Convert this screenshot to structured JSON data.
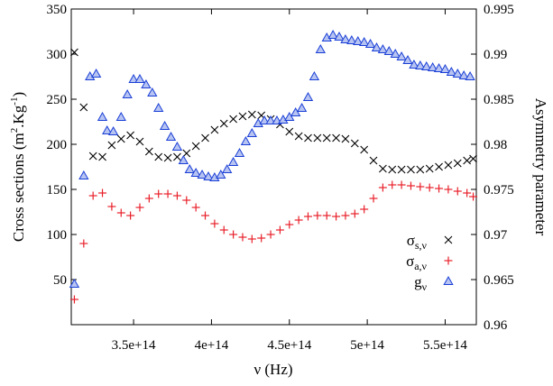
{
  "chart_data": {
    "type": "scatter",
    "xlabel": {
      "main": "ν (Hz)"
    },
    "ylabel_left": {
      "pre": "Cross sections (m",
      "sup1": "2",
      "mid": ".Kg",
      "sup2": "-1",
      "post": ")"
    },
    "ylabel_right": "Asymmetry parameter",
    "xlim": [
      310000000000000.0,
      570000000000000.0
    ],
    "ylim_left": [
      0,
      350
    ],
    "ylim_right": [
      0.96,
      0.995
    ],
    "x_ticks": [
      {
        "value": 350000000000000.0,
        "label": "3.5e+14"
      },
      {
        "value": 400000000000000.0,
        "label": "4e+14"
      },
      {
        "value": 450000000000000.0,
        "label": "4.5e+14"
      },
      {
        "value": 500000000000000.0,
        "label": "5e+14"
      },
      {
        "value": 550000000000000.0,
        "label": "5.5e+14"
      }
    ],
    "y_ticks_left": [
      {
        "value": 0,
        "label": ""
      },
      {
        "value": 50,
        "label": "50"
      },
      {
        "value": 100,
        "label": "100"
      },
      {
        "value": 150,
        "label": "150"
      },
      {
        "value": 200,
        "label": "200"
      },
      {
        "value": 250,
        "label": "250"
      },
      {
        "value": 300,
        "label": "300"
      },
      {
        "value": 350,
        "label": "350"
      }
    ],
    "y_ticks_right": [
      {
        "value": 0.96,
        "label": "0.96"
      },
      {
        "value": 0.965,
        "label": "0.965"
      },
      {
        "value": 0.97,
        "label": "0.97"
      },
      {
        "value": 0.975,
        "label": "0.975"
      },
      {
        "value": 0.98,
        "label": "0.98"
      },
      {
        "value": 0.985,
        "label": "0.985"
      },
      {
        "value": 0.99,
        "label": "0.99"
      },
      {
        "value": 0.995,
        "label": "0.995"
      }
    ],
    "grid": false,
    "legend_position": "bottom-right",
    "series": [
      {
        "key": "sigma_s",
        "legend": {
          "base": "σ",
          "sub": "s,ν"
        },
        "marker": "x",
        "color": "#000000",
        "axis": "left",
        "x": [
          312000000000000.0,
          318000000000000.0,
          324000000000000.0,
          330000000000000.0,
          336000000000000.0,
          342000000000000.0,
          348000000000000.0,
          354000000000000.0,
          360000000000000.0,
          366000000000000.0,
          372000000000000.0,
          378000000000000.0,
          384000000000000.0,
          390000000000000.0,
          396000000000000.0,
          402000000000000.0,
          408000000000000.0,
          414000000000000.0,
          420000000000000.0,
          426000000000000.0,
          432000000000000.0,
          438000000000000.0,
          444000000000000.0,
          450000000000000.0,
          456000000000000.0,
          462000000000000.0,
          468000000000000.0,
          474000000000000.0,
          480000000000000.0,
          486000000000000.0,
          492000000000000.0,
          498000000000000.0,
          504000000000000.0,
          510000000000000.0,
          516000000000000.0,
          522000000000000.0,
          528000000000000.0,
          534000000000000.0,
          540000000000000.0,
          546000000000000.0,
          552000000000000.0,
          558000000000000.0,
          564000000000000.0,
          568000000000000.0
        ],
        "y": [
          302,
          241,
          187,
          186,
          199,
          206,
          210,
          203,
          192,
          186,
          185,
          186,
          190,
          198,
          207,
          216,
          223,
          228,
          231,
          233,
          232,
          228,
          222,
          214,
          209,
          207,
          207,
          207,
          207,
          206,
          201,
          194,
          182,
          173,
          172,
          172,
          172,
          172,
          173,
          175,
          177,
          179,
          182,
          184
        ]
      },
      {
        "key": "sigma_a",
        "legend": {
          "base": "σ",
          "sub": "a,ν"
        },
        "marker": "plus",
        "color": "#e8202a",
        "axis": "left",
        "x": [
          312000000000000.0,
          318000000000000.0,
          324000000000000.0,
          330000000000000.0,
          336000000000000.0,
          342000000000000.0,
          348000000000000.0,
          354000000000000.0,
          360000000000000.0,
          366000000000000.0,
          372000000000000.0,
          378000000000000.0,
          384000000000000.0,
          390000000000000.0,
          396000000000000.0,
          402000000000000.0,
          408000000000000.0,
          414000000000000.0,
          420000000000000.0,
          426000000000000.0,
          432000000000000.0,
          438000000000000.0,
          444000000000000.0,
          450000000000000.0,
          456000000000000.0,
          462000000000000.0,
          468000000000000.0,
          474000000000000.0,
          480000000000000.0,
          486000000000000.0,
          492000000000000.0,
          498000000000000.0,
          504000000000000.0,
          510000000000000.0,
          516000000000000.0,
          522000000000000.0,
          528000000000000.0,
          534000000000000.0,
          540000000000000.0,
          546000000000000.0,
          552000000000000.0,
          558000000000000.0,
          564000000000000.0,
          568000000000000.0
        ],
        "y": [
          28,
          90,
          143,
          146,
          131,
          124,
          121,
          130,
          140,
          145,
          145,
          143,
          138,
          130,
          121,
          112,
          105,
          100,
          97,
          95,
          96,
          100,
          105,
          111,
          116,
          120,
          121,
          121,
          120,
          121,
          123,
          128,
          140,
          152,
          155,
          155,
          154,
          153,
          152,
          151,
          150,
          148,
          146,
          142
        ]
      },
      {
        "key": "g",
        "legend": {
          "base": "g",
          "sub": "ν"
        },
        "marker": "triangle",
        "color": "#1a3fd6",
        "axis": "right",
        "x": [
          312000000000000.0,
          318000000000000.0,
          322000000000000.0,
          326000000000000.0,
          330000000000000.0,
          333000000000000.0,
          337000000000000.0,
          342000000000000.0,
          346000000000000.0,
          350000000000000.0,
          354000000000000.0,
          358000000000000.0,
          362000000000000.0,
          366000000000000.0,
          370000000000000.0,
          374000000000000.0,
          378000000000000.0,
          382000000000000.0,
          386000000000000.0,
          390000000000000.0,
          394000000000000.0,
          398000000000000.0,
          402000000000000.0,
          406000000000000.0,
          410000000000000.0,
          414000000000000.0,
          418000000000000.0,
          422000000000000.0,
          426000000000000.0,
          430000000000000.0,
          434000000000000.0,
          438000000000000.0,
          442000000000000.0,
          446000000000000.0,
          450000000000000.0,
          454000000000000.0,
          458000000000000.0,
          462000000000000.0,
          466000000000000.0,
          470000000000000.0,
          474000000000000.0,
          478000000000000.0,
          482000000000000.0,
          486000000000000.0,
          490000000000000.0,
          494000000000000.0,
          498000000000000.0,
          502000000000000.0,
          506000000000000.0,
          510000000000000.0,
          514000000000000.0,
          518000000000000.0,
          522000000000000.0,
          526000000000000.0,
          530000000000000.0,
          534000000000000.0,
          538000000000000.0,
          542000000000000.0,
          546000000000000.0,
          550000000000000.0,
          554000000000000.0,
          558000000000000.0,
          562000000000000.0,
          566000000000000.0
        ],
        "y": [
          0.9645,
          0.9765,
          0.9875,
          0.9878,
          0.983,
          0.9815,
          0.9814,
          0.983,
          0.9855,
          0.9872,
          0.9872,
          0.9866,
          0.9857,
          0.984,
          0.982,
          0.9808,
          0.9797,
          0.9782,
          0.9772,
          0.9768,
          0.9766,
          0.9764,
          0.9763,
          0.9766,
          0.9772,
          0.978,
          0.979,
          0.9803,
          0.9812,
          0.9823,
          0.9826,
          0.9826,
          0.9826,
          0.9827,
          0.983,
          0.9835,
          0.984,
          0.9852,
          0.9875,
          0.9905,
          0.9918,
          0.9921,
          0.9919,
          0.9916,
          0.9915,
          0.9914,
          0.9913,
          0.9911,
          0.9907,
          0.9905,
          0.9903,
          0.99,
          0.9897,
          0.9893,
          0.9888,
          0.9887,
          0.9886,
          0.9885,
          0.9884,
          0.9883,
          0.988,
          0.9878,
          0.9876,
          0.9875
        ]
      }
    ]
  }
}
